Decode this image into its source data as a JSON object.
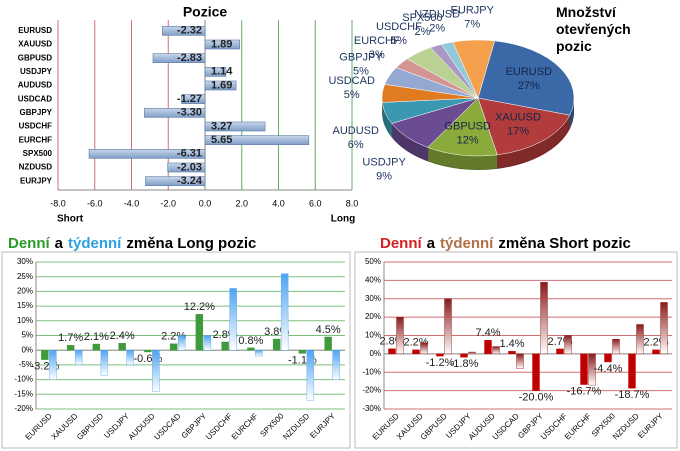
{
  "chart_data": [
    {
      "type": "bar",
      "orientation": "horizontal",
      "title": "Pozice",
      "axis_labels": [
        "Short",
        "Long"
      ],
      "categories": [
        "EURUSD",
        "XAUUSD",
        "GBPUSD",
        "USDJPY",
        "AUDUSD",
        "USDCAD",
        "GBPJPY",
        "USDCHF",
        "EURCHF",
        "SPX500",
        "NZDUSD",
        "EURJPY"
      ],
      "values": [
        -2.32,
        1.89,
        -2.83,
        1.14,
        1.69,
        -1.27,
        -3.3,
        3.27,
        5.65,
        -6.31,
        -2.03,
        -3.24
      ],
      "value_labels": [
        "-2.32",
        "1.89",
        "-2.83",
        "1.14",
        "1.69",
        "-1.27",
        "-3.30",
        "3.27",
        "5.65",
        "-6.31",
        "-2.03",
        "-3.24"
      ],
      "color": "#7f9fc8",
      "xlim": [
        -8,
        8
      ],
      "xticks": [
        {
          "value": -8,
          "label": "-8.0"
        },
        {
          "value": -6,
          "label": "-6.0"
        },
        {
          "value": -4,
          "label": "-4.0"
        },
        {
          "value": -2,
          "label": "-2.0"
        },
        {
          "value": 0,
          "label": "0.0"
        },
        {
          "value": 2,
          "label": "2.0"
        },
        {
          "value": 4,
          "label": "4.0"
        },
        {
          "value": 6,
          "label": "6.0"
        },
        {
          "value": 8,
          "label": "8.0"
        }
      ],
      "grid": true
    },
    {
      "type": "pie",
      "title": "Množství otevřených pozic",
      "categories": [
        "EURUSD",
        "XAUUSD",
        "GBPUSD",
        "USDJPY",
        "AUDUSD",
        "USDCAD",
        "GBPJPY",
        "EURCHF",
        "USDCHF",
        "SPX500",
        "NZDUSD",
        "EURJPY"
      ],
      "values": [
        27,
        17,
        12,
        9,
        6,
        5,
        5,
        3,
        5,
        2,
        2,
        7
      ],
      "value_labels": [
        "27%",
        "17%",
        "12%",
        "9%",
        "6%",
        "5%",
        "5%",
        "3%",
        "5%",
        "2%",
        "2%",
        "7%"
      ],
      "colors": [
        "#3b68a6",
        "#b23b3b",
        "#8aab3c",
        "#6b4b92",
        "#3a98b0",
        "#e07b22",
        "#93a9d2",
        "#d49494",
        "#b9d293",
        "#a898c2",
        "#92c9d9",
        "#f4a04c"
      ]
    },
    {
      "type": "bar",
      "title": [
        "Denní",
        "a",
        "týdenní",
        "změna Long pozic"
      ],
      "title_colors": [
        "#2e9a2e",
        "#000000",
        "#2ea0e0",
        "#000000"
      ],
      "categories": [
        "EURUSD",
        "XAUUSD",
        "GBPUSD",
        "USDJPY",
        "AUDUSD",
        "USDCAD",
        "GBPJPY",
        "USDCHF",
        "EURCHF",
        "SPX500",
        "NZDUSD",
        "EURJPY"
      ],
      "series": [
        {
          "color": "#3f9a3a",
          "values": [
            -3.2,
            1.7,
            2.1,
            2.4,
            -0.6,
            2.2,
            12.2,
            2.8,
            0.8,
            3.8,
            -1.1,
            4.5
          ],
          "value_labels": [
            "-3.2%",
            "1.7%",
            "2.1%",
            "2.4%",
            "-0.6%",
            "2.2%",
            "12.2%",
            "2.8%",
            "0.8%",
            "3.8%",
            "-1.1%",
            "4.5%"
          ]
        },
        {
          "color": "#4fa3f0",
          "values": [
            -10,
            -5,
            -8.5,
            -5,
            -14,
            5,
            5,
            21,
            -2,
            26,
            -17,
            -10
          ]
        }
      ],
      "ylim": [
        -20,
        30
      ],
      "yticks": [
        {
          "value": -20,
          "label": "-20%"
        },
        {
          "value": -15,
          "label": "-15%"
        },
        {
          "value": -10,
          "label": "-10%"
        },
        {
          "value": -5,
          "label": "-5%"
        },
        {
          "value": 0,
          "label": "0%"
        },
        {
          "value": 5,
          "label": "5%"
        },
        {
          "value": 10,
          "label": "10%"
        },
        {
          "value": 15,
          "label": "15%"
        },
        {
          "value": 20,
          "label": "20%"
        },
        {
          "value": 25,
          "label": "25%"
        },
        {
          "value": 30,
          "label": "30%"
        }
      ],
      "grid": true,
      "grid_color": "#7cc07c"
    },
    {
      "type": "bar",
      "title": [
        "Denní",
        "a",
        "týdenní",
        "změna Short pozic"
      ],
      "title_colors": [
        "#d42020",
        "#000000",
        "#b07048",
        "#000000"
      ],
      "categories": [
        "EURUSD",
        "XAUUSD",
        "GBPUSD",
        "USDJPY",
        "AUDUSD",
        "USDCAD",
        "GBPJPY",
        "USDCHF",
        "EURCHF",
        "SPX500",
        "NZDUSD",
        "EURJPY"
      ],
      "series": [
        {
          "color": "#c00000",
          "values": [
            2.8,
            2.2,
            -1.2,
            -1.8,
            7.4,
            1.4,
            -20.0,
            2.7,
            -16.7,
            -4.4,
            -18.7,
            2.2
          ],
          "value_labels": [
            "2.8%",
            "2.2%",
            "-1.2%",
            "-1.8%",
            "7.4%",
            "1.4%",
            "-20.0%",
            "2.7%",
            "-16.7%",
            "-4.4%",
            "-18.7%",
            "2.2%"
          ]
        },
        {
          "color": "#8a1a1a",
          "values": [
            20,
            6,
            30,
            1,
            4,
            -8,
            39,
            10,
            -17,
            8,
            16,
            28
          ]
        }
      ],
      "ylim": [
        -30,
        50
      ],
      "yticks": [
        {
          "value": -30,
          "label": "-30%"
        },
        {
          "value": -20,
          "label": "-20%"
        },
        {
          "value": -10,
          "label": "-10%"
        },
        {
          "value": 0,
          "label": "0%"
        },
        {
          "value": 10,
          "label": "10%"
        },
        {
          "value": 20,
          "label": "20%"
        },
        {
          "value": 30,
          "label": "30%"
        },
        {
          "value": 40,
          "label": "40%"
        },
        {
          "value": 50,
          "label": "50%"
        }
      ],
      "grid": true,
      "grid_color": "#d07070"
    }
  ]
}
